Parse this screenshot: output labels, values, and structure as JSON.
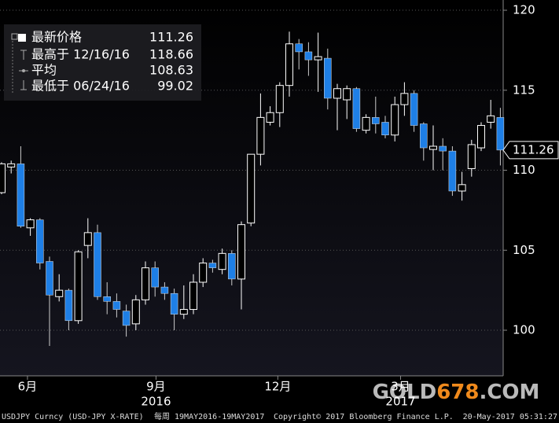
{
  "chart_data": {
    "type": "candlestick",
    "open": [
      108.6,
      110.2,
      110.4,
      106.4,
      106.9,
      104.3,
      102.1,
      102.5,
      100.6,
      105.3,
      106.1,
      102.1,
      101.8,
      101.2,
      100.4,
      101.9,
      103.9,
      102.7,
      102.3,
      101.0,
      101.3,
      103.0,
      104.2,
      103.8,
      104.8,
      103.2,
      106.7,
      111.0,
      113.0,
      113.6,
      115.3,
      117.9,
      117.4,
      116.9,
      117.0,
      114.5,
      114.4,
      115.1,
      112.5,
      113.3,
      113.0,
      112.2,
      114.1,
      114.8,
      112.9,
      111.3,
      111.5,
      111.2,
      108.7,
      110.1,
      111.4,
      113.0,
      113.3
    ],
    "high": [
      110.5,
      110.6,
      111.5,
      107.0,
      107.0,
      104.6,
      103.5,
      102.6,
      105.0,
      107.0,
      106.6,
      103.0,
      102.3,
      101.6,
      102.2,
      104.3,
      104.3,
      103.0,
      102.6,
      102.8,
      103.5,
      104.5,
      104.4,
      105.1,
      105.0,
      106.8,
      111.0,
      114.8,
      114.0,
      115.5,
      118.66,
      118.2,
      118.0,
      118.6,
      117.6,
      115.4,
      115.3,
      115.2,
      113.5,
      114.6,
      113.4,
      114.6,
      115.5,
      115.0,
      113.0,
      112.8,
      112.0,
      111.5,
      109.9,
      111.9,
      113.0,
      114.4,
      113.9
    ],
    "low": [
      108.5,
      109.8,
      106.4,
      105.9,
      103.8,
      99.02,
      101.8,
      100.0,
      100.4,
      104.5,
      101.9,
      101.0,
      100.8,
      99.6,
      100.0,
      101.6,
      102.1,
      101.9,
      100.0,
      100.7,
      101.0,
      102.7,
      103.6,
      103.5,
      102.8,
      101.3,
      106.5,
      110.3,
      112.8,
      112.7,
      114.6,
      116.3,
      115.9,
      114.9,
      113.8,
      112.5,
      113.2,
      112.4,
      112.3,
      112.3,
      112.0,
      111.8,
      113.4,
      112.4,
      110.6,
      110.0,
      110.0,
      108.4,
      108.1,
      109.6,
      111.2,
      112.6,
      110.3
    ],
    "close": [
      110.4,
      110.4,
      106.5,
      106.9,
      104.2,
      102.2,
      102.5,
      100.6,
      104.9,
      106.1,
      102.1,
      101.8,
      101.3,
      100.3,
      101.9,
      103.9,
      102.7,
      102.3,
      101.0,
      101.3,
      103.0,
      104.2,
      103.9,
      104.8,
      103.2,
      106.6,
      111.0,
      113.3,
      113.6,
      115.3,
      117.9,
      117.4,
      116.9,
      117.1,
      114.5,
      115.1,
      115.1,
      112.6,
      113.3,
      112.9,
      112.2,
      114.1,
      114.8,
      112.8,
      111.4,
      111.5,
      111.2,
      108.7,
      109.1,
      111.6,
      112.8,
      113.4,
      111.26
    ],
    "up_color": "#ffffff",
    "down_color": "#1e7fe6",
    "ylim": [
      97.15,
      120.64
    ],
    "yticks": [
      100,
      105,
      110,
      115,
      120
    ],
    "grid": true,
    "xticks": [
      {
        "value": 2.7,
        "label": "6月"
      },
      {
        "value": 16.1,
        "label": "9月"
      },
      {
        "value": 28.8,
        "label": "12月"
      },
      {
        "value": 41.6,
        "label": "3月"
      }
    ],
    "year_ticks": [
      {
        "value": 16.1,
        "label": "2016"
      },
      {
        "value": 41.6,
        "label": "2017"
      }
    ],
    "legend": [
      {
        "label": "最新价格",
        "value": 111.26
      },
      {
        "label": "最高于 12/16/16",
        "value": 118.66
      },
      {
        "label": "平均",
        "value": 108.63
      },
      {
        "label": "最低于 06/24/16",
        "value": 99.02
      }
    ],
    "footer": [
      "USDJPY Curncy (USD-JPY X-RATE)",
      "每周 19MAY2016-19MAY2017",
      "Copyright© 2017 Bloomberg Finance L.P.",
      "20-May-2017 05:31:27"
    ],
    "watermark": [
      "GOLD",
      "678",
      ".COM"
    ]
  }
}
